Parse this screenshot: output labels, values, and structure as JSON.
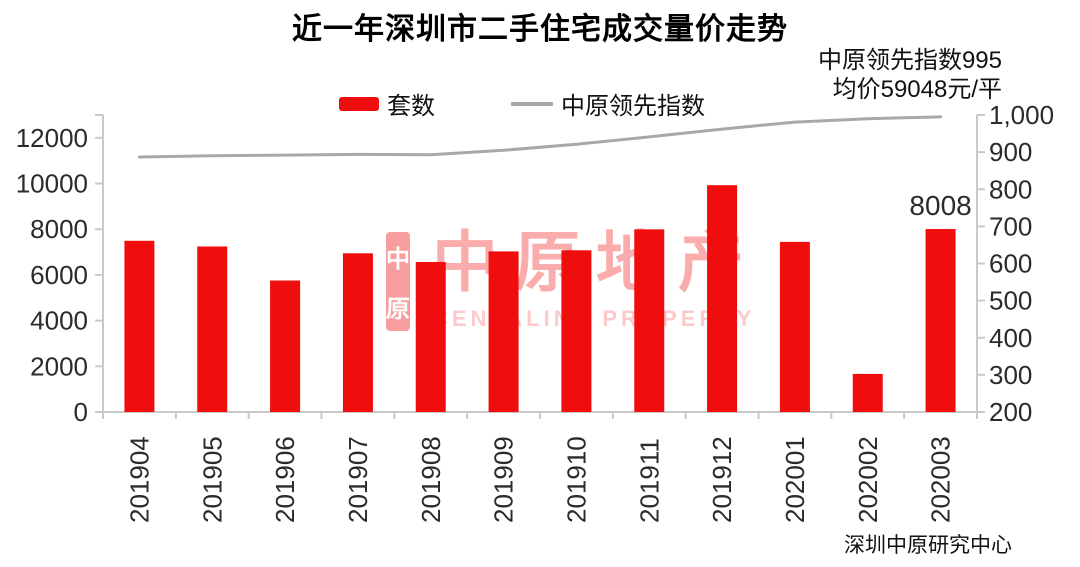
{
  "title": "近一年深圳市二手住宅成交量价走势",
  "annotation": {
    "line1": "中原领先指数995",
    "line2": "均价59048元/平"
  },
  "source": "深圳中原研究中心",
  "watermark": {
    "seal_top": "中",
    "seal_bottom": "原",
    "brand": "中原地产",
    "subtitle": "CENTALINE PROPERTY"
  },
  "colors": {
    "bar": "#f00d0d",
    "line": "#a8a8a8",
    "axis": "#c9c9c9",
    "label": "#2b2b2b"
  },
  "chart_data": {
    "type": "bar+line combo",
    "title": "近一年深圳市二手住宅成交量价走势",
    "categories": [
      "201904",
      "201905",
      "201906",
      "201907",
      "201908",
      "201909",
      "201910",
      "201911",
      "201912",
      "202001",
      "202002",
      "202003"
    ],
    "series": [
      {
        "name": "套数",
        "type": "bar",
        "axis": "left",
        "color": "#f00d0d",
        "values": [
          7494,
          7245,
          5756,
          6946,
          6567,
          7030,
          7079,
          7995,
          9928,
          7446,
          1667,
          8008
        ]
      },
      {
        "name": "中原领先指数",
        "type": "line",
        "axis": "right",
        "color": "#a8a8a8",
        "values": [
          887,
          890,
          892,
          894,
          893,
          905,
          921,
          941,
          962,
          981,
          990,
          995
        ]
      }
    ],
    "left_axis": {
      "min": 0,
      "max": 13000,
      "tick_values": [
        0,
        2000,
        4000,
        6000,
        8000,
        10000,
        12000
      ],
      "tick_labels": [
        "0",
        "2000",
        "4000",
        "6000",
        "8000",
        "10000",
        "12000"
      ]
    },
    "right_axis": {
      "min": 200,
      "max": 1000,
      "tick_values": [
        200,
        300,
        400,
        500,
        600,
        700,
        800,
        900,
        1000
      ],
      "tick_labels": [
        "200",
        "300",
        "400",
        "500",
        "600",
        "700",
        "800",
        "900",
        "1,000"
      ]
    },
    "data_labels": [
      {
        "category": "202003",
        "series": "套数",
        "text": "8008"
      }
    ],
    "grid": false,
    "legend_position": "top-center"
  }
}
